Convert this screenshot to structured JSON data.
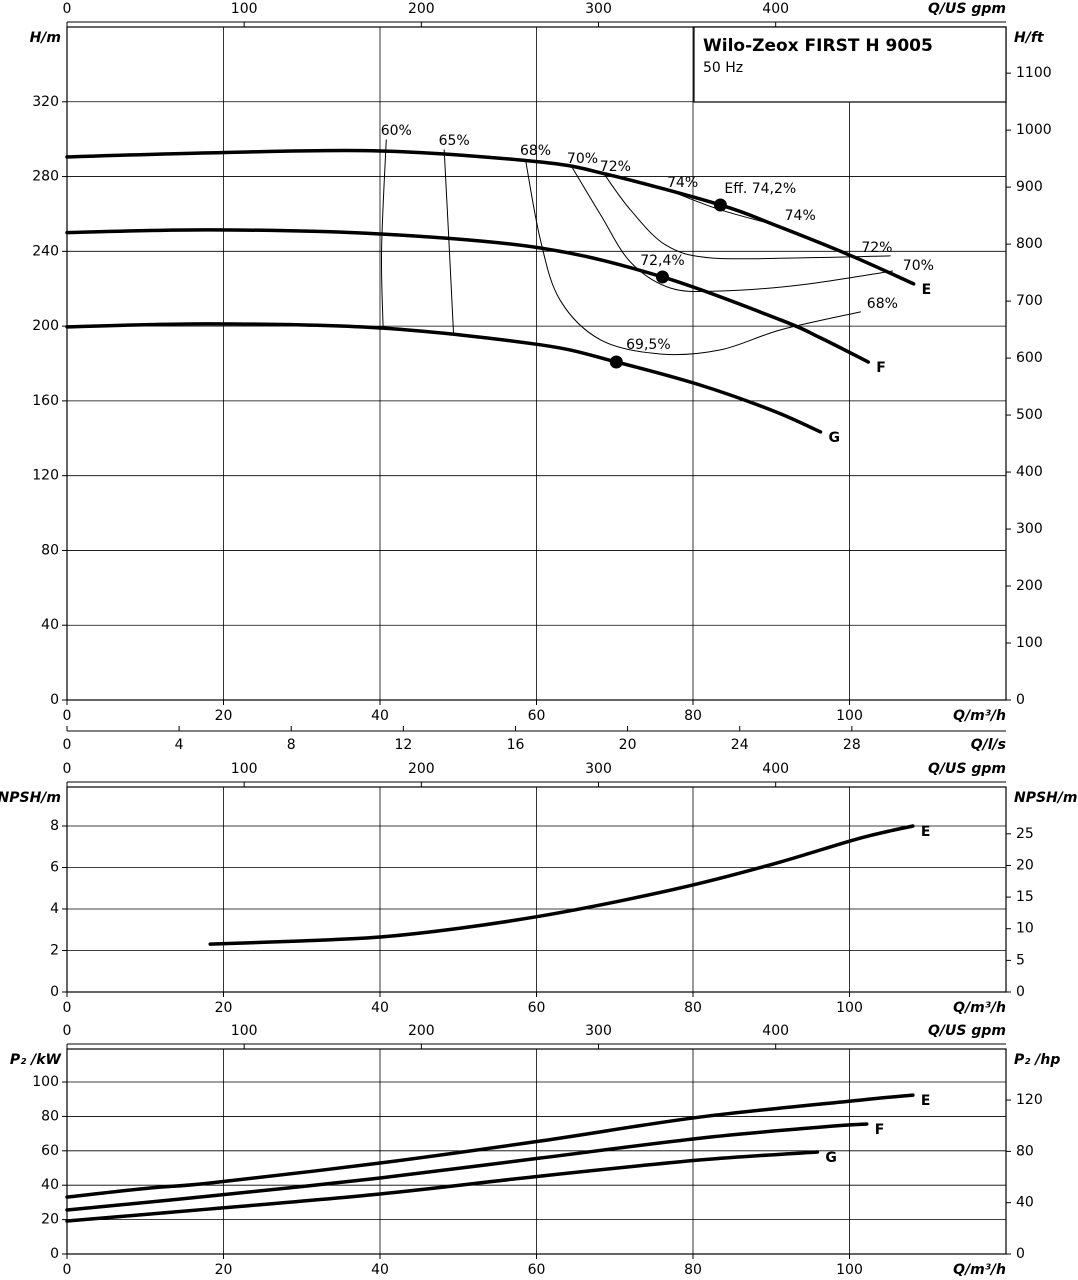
{
  "chart_data": [
    {
      "type": "line",
      "title": "Wilo-Zeox FIRST H 9005",
      "subtitle": "50 Hz",
      "ylabel": "H/m",
      "y2label": "H/ft",
      "xlabel": "Q/m³/h",
      "x2label": "Q/US gpm",
      "x3label": "Q/l/s",
      "xlim": [
        0,
        120
      ],
      "xticks": [
        0,
        20,
        40,
        60,
        80,
        100
      ],
      "x2lim": [
        0,
        530
      ],
      "x2ticks": [
        0,
        100,
        200,
        300,
        400
      ],
      "x3lim": [
        0,
        33.5
      ],
      "x3ticks": [
        0,
        4,
        8,
        12,
        16,
        20,
        24,
        28
      ],
      "ylim": [
        0,
        360
      ],
      "yticks": [
        0,
        40,
        80,
        120,
        160,
        200,
        240,
        280,
        320
      ],
      "y2lim": [
        0,
        1181
      ],
      "y2ticks": [
        0,
        100,
        200,
        300,
        400,
        500,
        600,
        700,
        800,
        900,
        1000,
        1100
      ],
      "grid": true,
      "series": [
        {
          "name": "E",
          "color": "#000000",
          "x": [
            0,
            18.3,
            40,
            60.2,
            69.2,
            83.5,
            90.5,
            100,
            108.2
          ],
          "values": [
            290.5,
            292.7,
            293.7,
            287.9,
            281,
            264.8,
            254,
            238,
            222.6
          ],
          "bep": [
            83.5,
            264.8
          ]
        },
        {
          "name": "F",
          "color": "#000000",
          "x": [
            0,
            18.3,
            40,
            60.5,
            76.1,
            91.2,
            96.3,
            102.4
          ],
          "values": [
            250,
            251.5,
            249.3,
            241.8,
            226.3,
            203.3,
            193.7,
            180.8
          ],
          "bep": [
            76.1,
            226.3
          ]
        },
        {
          "name": "G",
          "color": "#000000",
          "x": [
            0,
            18.3,
            40,
            60.5,
            70.2,
            80.9,
            90.3,
            96.3
          ],
          "values": [
            199.6,
            201.2,
            199,
            190,
            180.8,
            168.5,
            154.6,
            143.4
          ],
          "bep": [
            70.2,
            180.8
          ]
        }
      ],
      "efficiency_curves": [
        {
          "name": "60%",
          "x": [
            40.8,
            40.2,
            40.4
          ],
          "values": [
            299.6,
            240.8,
            199
          ]
        },
        {
          "name": "65%",
          "x": [
            48.2,
            48.8,
            49.4
          ],
          "values": [
            294.3,
            246.1,
            195.8
          ]
        },
        {
          "name": "68%",
          "x": [
            58.6,
            60.5,
            63,
            68.2,
            75.8,
            83.5,
            91.2,
            101.4
          ],
          "values": [
            288.9,
            246.1,
            214,
            192.6,
            185.1,
            187.3,
            198,
            207.6
          ]
        },
        {
          "name": "70%",
          "x": [
            64.6,
            68.2,
            72,
            77.1,
            83.5,
            93.7,
            105.5
          ],
          "values": [
            284.6,
            259.5,
            234.3,
            220.4,
            218.8,
            222,
            229.5
          ]
        },
        {
          "name": "72%",
          "x": [
            68.8,
            72,
            76.5,
            82.2,
            93.7,
            105.2
          ],
          "values": [
            280.4,
            262.2,
            243.4,
            236.5,
            236.5,
            237.6
          ]
        },
        {
          "name": "74%",
          "x": [
            77.4,
            83.5,
            90.5
          ],
          "values": [
            271.8,
            262.2,
            254.1
          ]
        }
      ],
      "annotations": [
        {
          "text": "68%",
          "x": 104.2,
          "y": 211.9
        },
        {
          "text": "70%",
          "x": 108.8,
          "y": 232.2
        },
        {
          "text": "72%",
          "x": 103.5,
          "y": 241.8
        },
        {
          "text": "74%",
          "x": 93.7,
          "y": 259
        },
        {
          "text": "Eff. 74,2%",
          "x": 88.6,
          "y": 273.4
        },
        {
          "text": "72,4%",
          "x": 76.1,
          "y": 234.9
        },
        {
          "text": "69,5%",
          "x": 74.3,
          "y": 190
        }
      ]
    },
    {
      "type": "line",
      "ylabel": "NPSH/m",
      "y2label": "NPSH/m",
      "xlabel": "Q/m³/h",
      "x2label": "Q/US gpm",
      "xlim": [
        0,
        120
      ],
      "xticks": [
        0,
        20,
        40,
        60,
        80,
        100
      ],
      "x2lim": [
        0,
        530
      ],
      "x2ticks": [
        0,
        100,
        200,
        300,
        400
      ],
      "ylim": [
        0,
        9.88
      ],
      "yticks": [
        0,
        2,
        4,
        6,
        8
      ],
      "y2lim": [
        0,
        32.4
      ],
      "y2ticks": [
        0,
        5,
        10,
        15,
        20,
        25
      ],
      "grid": true,
      "series": [
        {
          "name": "E",
          "color": "#000000",
          "x": [
            18.3,
            29.8,
            40,
            50.3,
            60.5,
            70.7,
            81,
            91.2,
            101.4,
            108.1
          ],
          "values": [
            2.31,
            2.46,
            2.65,
            3.08,
            3.66,
            4.39,
            5.25,
            6.27,
            7.42,
            8.0
          ]
        }
      ]
    },
    {
      "type": "line",
      "ylabel": "P₂ /kW",
      "y2label": "P₂ /hp",
      "xlabel": "Q/m³/h",
      "x2label": "Q/US gpm",
      "xlim": [
        0,
        120
      ],
      "xticks": [
        0,
        20,
        40,
        60,
        80,
        100
      ],
      "x2lim": [
        0,
        530
      ],
      "x2ticks": [
        0,
        100,
        200,
        300,
        400
      ],
      "ylim": [
        0,
        119.2
      ],
      "yticks": [
        0,
        20,
        40,
        60,
        80,
        100
      ],
      "y2lim": [
        0,
        159.8
      ],
      "y2ticks": [
        0,
        40,
        80,
        120
      ],
      "grid": true,
      "series": [
        {
          "name": "E",
          "color": "#000000",
          "x": [
            0,
            10.6,
            18.3,
            40,
            60.5,
            81,
            101.4,
            108.1
          ],
          "values": [
            33.1,
            38.4,
            41.3,
            52.9,
            65.7,
            79.7,
            89.5,
            92.4
          ]
        },
        {
          "name": "F",
          "color": "#000000",
          "x": [
            0,
            18.3,
            40,
            60.5,
            81,
            96.3,
            102.2
          ],
          "values": [
            25.6,
            33.7,
            44.2,
            55.8,
            67.4,
            73.8,
            75.6
          ]
        },
        {
          "name": "G",
          "color": "#000000",
          "x": [
            0,
            18.3,
            40,
            60.5,
            81,
            95.9
          ],
          "values": [
            19.2,
            26.2,
            34.9,
            45.3,
            54.7,
            59.3
          ]
        }
      ]
    }
  ]
}
